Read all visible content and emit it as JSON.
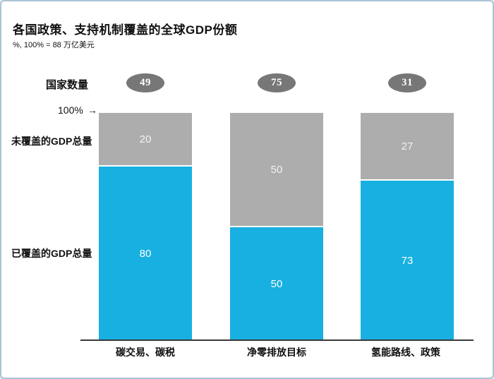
{
  "title": "各国政策、支持机制覆盖的全球GDP份额",
  "subtitle": "%, 100% = 88 万亿美元",
  "labels": {
    "country_count": "国家数量",
    "axis_top": "100%",
    "uncovered": "未覆盖的GDP总量",
    "covered": "已覆盖的GDP总量"
  },
  "icons": {
    "arrow_right": "→"
  },
  "colors": {
    "covered": "#17b0e0",
    "uncovered": "#adadad",
    "badge": "#777777",
    "axis": "#3a3a3a",
    "frame_border": "#a9c3d6"
  },
  "chart_data": {
    "type": "bar",
    "stacked": true,
    "title": "各国政策、支持机制覆盖的全球GDP份额",
    "subtitle": "%, 100% = 88 万亿美元",
    "unit_note": "100% = 88 万亿美元",
    "categories": [
      "碳交易、碳税",
      "净零排放目标",
      "氢能路线、政策"
    ],
    "country_counts": [
      49,
      75,
      31
    ],
    "series": [
      {
        "name": "已覆盖的GDP总量",
        "color": "#17b0e0",
        "values": [
          80,
          50,
          73
        ]
      },
      {
        "name": "未覆盖的GDP总量",
        "color": "#adadad",
        "values": [
          20,
          50,
          27
        ]
      }
    ],
    "ylim": [
      0,
      100
    ],
    "grid": false,
    "legend_position": "left-of-bars-as-row-labels"
  }
}
